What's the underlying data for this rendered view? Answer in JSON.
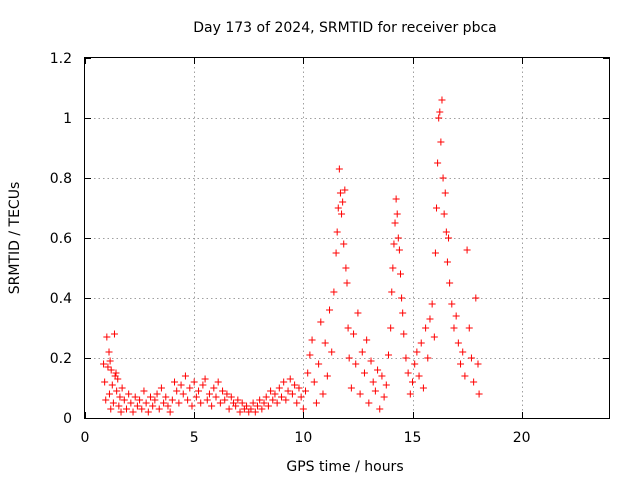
{
  "chart_data": {
    "type": "scatter",
    "title": "Day 173 of 2024, SRMTID for receiver pbca",
    "xlabel": "GPS time / hours",
    "ylabel": "SRMTID / TECUs",
    "xlim": [
      0,
      24
    ],
    "ylim": [
      0,
      1.2
    ],
    "xticks": [
      0,
      5,
      10,
      15,
      20
    ],
    "xtick_labels": [
      "0",
      "5",
      "10",
      "15",
      "20"
    ],
    "yticks": [
      0,
      0.2,
      0.4,
      0.6,
      0.8,
      1.0,
      1.2
    ],
    "ytick_labels": [
      "0",
      "0.2",
      "0.4",
      "0.6",
      "0.8",
      "1",
      "1.2"
    ],
    "grid": true,
    "marker": "+",
    "color": "#ff0000",
    "series": [
      {
        "name": "pbca",
        "points": [
          [
            0.85,
            0.18
          ],
          [
            0.9,
            0.12
          ],
          [
            0.95,
            0.06
          ],
          [
            1.0,
            0.27
          ],
          [
            1.05,
            0.17
          ],
          [
            1.1,
            0.22
          ],
          [
            1.12,
            0.08
          ],
          [
            1.15,
            0.19
          ],
          [
            1.18,
            0.03
          ],
          [
            1.2,
            0.16
          ],
          [
            1.25,
            0.11
          ],
          [
            1.3,
            0.05
          ],
          [
            1.35,
            0.28
          ],
          [
            1.38,
            0.14
          ],
          [
            1.42,
            0.15
          ],
          [
            1.45,
            0.09
          ],
          [
            1.5,
            0.13
          ],
          [
            1.55,
            0.04
          ],
          [
            1.6,
            0.07
          ],
          [
            1.65,
            0.02
          ],
          [
            1.7,
            0.1
          ],
          [
            1.8,
            0.06
          ],
          [
            1.9,
            0.03
          ],
          [
            2.0,
            0.08
          ],
          [
            2.1,
            0.05
          ],
          [
            2.2,
            0.02
          ],
          [
            2.3,
            0.07
          ],
          [
            2.4,
            0.04
          ],
          [
            2.5,
            0.06
          ],
          [
            2.6,
            0.03
          ],
          [
            2.7,
            0.09
          ],
          [
            2.8,
            0.05
          ],
          [
            2.9,
            0.02
          ],
          [
            3.0,
            0.07
          ],
          [
            3.1,
            0.04
          ],
          [
            3.2,
            0.06
          ],
          [
            3.3,
            0.08
          ],
          [
            3.4,
            0.03
          ],
          [
            3.5,
            0.1
          ],
          [
            3.6,
            0.05
          ],
          [
            3.7,
            0.07
          ],
          [
            3.8,
            0.04
          ],
          [
            3.9,
            0.02
          ],
          [
            4.0,
            0.06
          ],
          [
            4.1,
            0.12
          ],
          [
            4.2,
            0.09
          ],
          [
            4.3,
            0.05
          ],
          [
            4.4,
            0.11
          ],
          [
            4.5,
            0.08
          ],
          [
            4.6,
            0.14
          ],
          [
            4.7,
            0.06
          ],
          [
            4.8,
            0.1
          ],
          [
            4.9,
            0.04
          ],
          [
            5.0,
            0.12
          ],
          [
            5.1,
            0.07
          ],
          [
            5.2,
            0.09
          ],
          [
            5.3,
            0.05
          ],
          [
            5.4,
            0.11
          ],
          [
            5.5,
            0.13
          ],
          [
            5.6,
            0.06
          ],
          [
            5.7,
            0.08
          ],
          [
            5.8,
            0.04
          ],
          [
            5.9,
            0.1
          ],
          [
            6.0,
            0.07
          ],
          [
            6.1,
            0.12
          ],
          [
            6.2,
            0.05
          ],
          [
            6.3,
            0.09
          ],
          [
            6.4,
            0.06
          ],
          [
            6.5,
            0.08
          ],
          [
            6.6,
            0.03
          ],
          [
            6.7,
            0.07
          ],
          [
            6.8,
            0.05
          ],
          [
            6.9,
            0.04
          ],
          [
            7.0,
            0.06
          ],
          [
            7.1,
            0.02
          ],
          [
            7.2,
            0.05
          ],
          [
            7.3,
            0.03
          ],
          [
            7.4,
            0.04
          ],
          [
            7.5,
            0.02
          ],
          [
            7.6,
            0.03
          ],
          [
            7.7,
            0.05
          ],
          [
            7.8,
            0.02
          ],
          [
            7.9,
            0.04
          ],
          [
            8.0,
            0.06
          ],
          [
            8.1,
            0.03
          ],
          [
            8.2,
            0.05
          ],
          [
            8.3,
            0.07
          ],
          [
            8.4,
            0.04
          ],
          [
            8.5,
            0.09
          ],
          [
            8.6,
            0.06
          ],
          [
            8.7,
            0.08
          ],
          [
            8.8,
            0.05
          ],
          [
            8.9,
            0.1
          ],
          [
            9.0,
            0.07
          ],
          [
            9.1,
            0.12
          ],
          [
            9.2,
            0.06
          ],
          [
            9.3,
            0.09
          ],
          [
            9.4,
            0.13
          ],
          [
            9.5,
            0.08
          ],
          [
            9.6,
            0.11
          ],
          [
            9.7,
            0.05
          ],
          [
            9.8,
            0.1
          ],
          [
            9.9,
            0.07
          ],
          [
            10.0,
            0.03
          ],
          [
            10.1,
            0.09
          ],
          [
            10.2,
            0.15
          ],
          [
            10.3,
            0.21
          ],
          [
            10.4,
            0.26
          ],
          [
            10.5,
            0.12
          ],
          [
            10.6,
            0.05
          ],
          [
            10.7,
            0.18
          ],
          [
            10.8,
            0.32
          ],
          [
            10.9,
            0.08
          ],
          [
            11.0,
            0.25
          ],
          [
            11.1,
            0.14
          ],
          [
            11.2,
            0.36
          ],
          [
            11.3,
            0.22
          ],
          [
            11.4,
            0.42
          ],
          [
            11.5,
            0.55
          ],
          [
            11.55,
            0.62
          ],
          [
            11.6,
            0.7
          ],
          [
            11.65,
            0.83
          ],
          [
            11.7,
            0.75
          ],
          [
            11.75,
            0.68
          ],
          [
            11.8,
            0.72
          ],
          [
            11.85,
            0.58
          ],
          [
            11.9,
            0.76
          ],
          [
            11.95,
            0.5
          ],
          [
            12.0,
            0.45
          ],
          [
            12.05,
            0.3
          ],
          [
            12.1,
            0.2
          ],
          [
            12.2,
            0.1
          ],
          [
            12.3,
            0.28
          ],
          [
            12.4,
            0.18
          ],
          [
            12.5,
            0.35
          ],
          [
            12.6,
            0.08
          ],
          [
            12.7,
            0.22
          ],
          [
            12.8,
            0.15
          ],
          [
            12.9,
            0.26
          ],
          [
            13.0,
            0.05
          ],
          [
            13.1,
            0.19
          ],
          [
            13.2,
            0.12
          ],
          [
            13.3,
            0.09
          ],
          [
            13.4,
            0.16
          ],
          [
            13.5,
            0.03
          ],
          [
            13.6,
            0.14
          ],
          [
            13.7,
            0.07
          ],
          [
            13.8,
            0.11
          ],
          [
            13.9,
            0.21
          ],
          [
            14.0,
            0.3
          ],
          [
            14.05,
            0.42
          ],
          [
            14.1,
            0.5
          ],
          [
            14.15,
            0.58
          ],
          [
            14.2,
            0.65
          ],
          [
            14.25,
            0.73
          ],
          [
            14.3,
            0.68
          ],
          [
            14.35,
            0.6
          ],
          [
            14.4,
            0.56
          ],
          [
            14.45,
            0.48
          ],
          [
            14.5,
            0.4
          ],
          [
            14.55,
            0.35
          ],
          [
            14.6,
            0.28
          ],
          [
            14.7,
            0.2
          ],
          [
            14.8,
            0.15
          ],
          [
            14.9,
            0.08
          ],
          [
            15.0,
            0.12
          ],
          [
            15.1,
            0.18
          ],
          [
            15.2,
            0.22
          ],
          [
            15.3,
            0.14
          ],
          [
            15.4,
            0.25
          ],
          [
            15.5,
            0.1
          ],
          [
            15.6,
            0.3
          ],
          [
            15.7,
            0.2
          ],
          [
            15.8,
            0.33
          ],
          [
            15.9,
            0.38
          ],
          [
            16.0,
            0.27
          ],
          [
            16.05,
            0.55
          ],
          [
            16.1,
            0.7
          ],
          [
            16.15,
            0.85
          ],
          [
            16.2,
            1.0
          ],
          [
            16.25,
            1.02
          ],
          [
            16.3,
            0.92
          ],
          [
            16.35,
            1.06
          ],
          [
            16.4,
            0.8
          ],
          [
            16.45,
            0.68
          ],
          [
            16.5,
            0.75
          ],
          [
            16.55,
            0.62
          ],
          [
            16.6,
            0.52
          ],
          [
            16.65,
            0.6
          ],
          [
            16.7,
            0.45
          ],
          [
            16.8,
            0.38
          ],
          [
            16.9,
            0.3
          ],
          [
            17.0,
            0.34
          ],
          [
            17.1,
            0.25
          ],
          [
            17.2,
            0.18
          ],
          [
            17.3,
            0.22
          ],
          [
            17.4,
            0.14
          ],
          [
            17.5,
            0.56
          ],
          [
            17.6,
            0.3
          ],
          [
            17.7,
            0.2
          ],
          [
            17.8,
            0.12
          ],
          [
            17.9,
            0.4
          ],
          [
            18.0,
            0.18
          ],
          [
            18.05,
            0.08
          ]
        ]
      }
    ]
  }
}
